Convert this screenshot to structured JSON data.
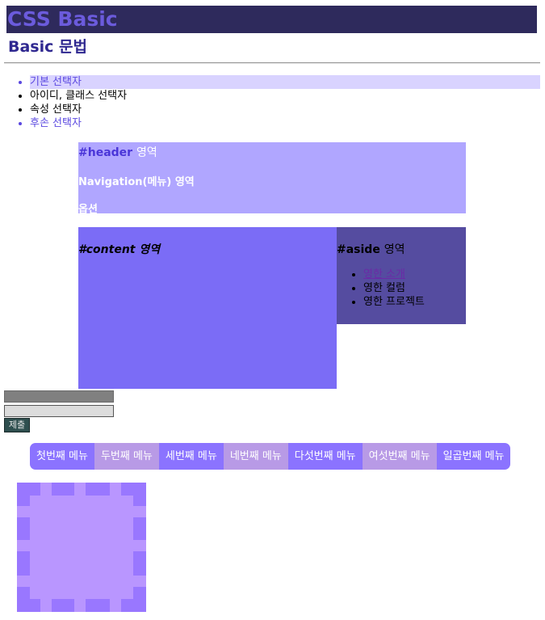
{
  "title": "CSS Basic",
  "subtitle": "Basic 문법",
  "selectors": [
    "기본 선택자",
    "아이디, 클래스 선택자",
    "속성 선택자",
    "후손 선택자"
  ],
  "header_area": {
    "id_label": "#header",
    "suffix": "영역",
    "nav_text": "Navigation(메뉴) 영역",
    "option_text": "옵션"
  },
  "content_area": {
    "label": "#content 영역"
  },
  "aside_area": {
    "id_label": "#aside",
    "suffix": "영역",
    "links": [
      "영한 소개",
      "영한 컬럼",
      "영한 프로젝트"
    ]
  },
  "form": {
    "submit_label": "제출"
  },
  "menu": {
    "items": [
      {
        "label": "첫번째 메뉴",
        "color": "#8b73ff"
      },
      {
        "label": "두번째 메뉴",
        "color": "#b89ae6"
      },
      {
        "label": "세번째 메뉴",
        "color": "#8b73ff"
      },
      {
        "label": "네번째 메뉴",
        "color": "#b89ae6"
      },
      {
        "label": "다섯번째 메뉴",
        "color": "#8b73ff"
      },
      {
        "label": "여섯번째 메뉴",
        "color": "#b89ae6"
      },
      {
        "label": "일곱번째 메뉴",
        "color": "#8b73ff"
      }
    ]
  },
  "colors": {
    "title_bg": "#2e2a5c",
    "title_text": "#6b5bdc",
    "header_bg": "#b0a6ff",
    "content_bg": "#7b6cf6",
    "aside_bg": "#554ca0",
    "deco_bg": "#b996ff",
    "deco_dash": "#9977ff"
  }
}
